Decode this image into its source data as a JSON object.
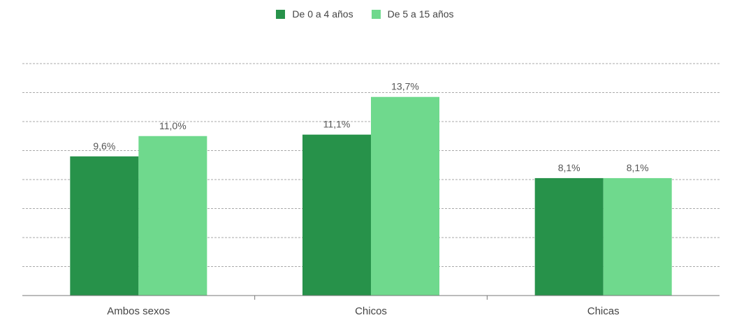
{
  "chart_data": {
    "type": "bar",
    "categories": [
      "Ambos sexos",
      "Chicos",
      "Chicas"
    ],
    "series": [
      {
        "name": "De 0 a 4 años",
        "values": [
          9.6,
          11.1,
          8.1
        ],
        "labels": [
          "9,6%",
          "11,1%",
          "8,1%"
        ],
        "color": "#27924a"
      },
      {
        "name": "De 5 a 15 años",
        "values": [
          11.0,
          13.7,
          8.1
        ],
        "labels": [
          "11,0%",
          "13,7%",
          "8,1%"
        ],
        "color": "#6fd98d"
      }
    ],
    "ylim": [
      0,
      16
    ],
    "grid": true,
    "legend_position": "top-center",
    "title": "",
    "xlabel": "",
    "ylabel": ""
  }
}
